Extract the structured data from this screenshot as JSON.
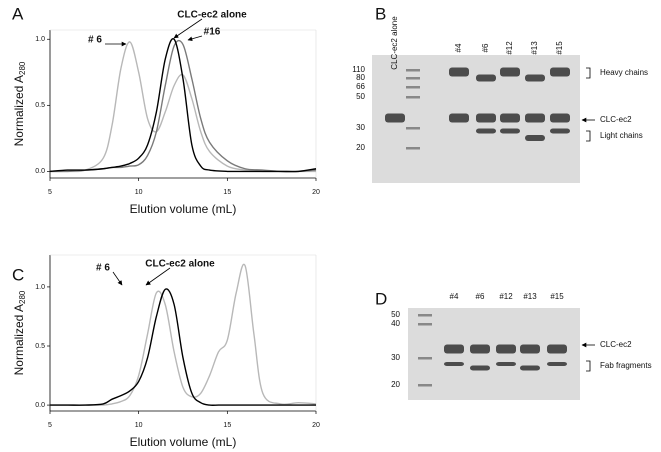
{
  "chart_data": [
    {
      "type": "line",
      "panel": "A",
      "xlabel": "Elution volume (mL)",
      "ylabel": "Normalized A",
      "ylabel_subscript": "280",
      "x": [
        5,
        6,
        7,
        8,
        8.5,
        9,
        9.5,
        10,
        10.5,
        11,
        11.5,
        12,
        12.5,
        13,
        13.5,
        14,
        15,
        16,
        17,
        18,
        19,
        20
      ],
      "xlim": [
        5,
        20
      ],
      "xticks": [
        5,
        10,
        15,
        20
      ],
      "ylim": [
        -0.05,
        1.07
      ],
      "yticks": [
        {
          "value": 0,
          "label": "0.0"
        },
        0.5,
        {
          "value": 1,
          "label": "1.0"
        }
      ],
      "series": [
        {
          "name": "# 6",
          "color": "#b8b8b8",
          "values": [
            0,
            0,
            0.01,
            0.1,
            0.35,
            0.78,
            0.98,
            0.75,
            0.4,
            0.3,
            0.45,
            0.65,
            0.73,
            0.55,
            0.3,
            0.15,
            0.04,
            0.01,
            0,
            0,
            0,
            0
          ]
        },
        {
          "name": "#16",
          "color": "#7a7a7a",
          "values": [
            0,
            0,
            0.01,
            0.02,
            0.03,
            0.03,
            0.04,
            0.05,
            0.12,
            0.3,
            0.65,
            0.95,
            0.96,
            0.7,
            0.4,
            0.22,
            0.08,
            0.02,
            0.01,
            0,
            0,
            0.01
          ]
        },
        {
          "name": "CLC-ec2 alone",
          "color": "#000000",
          "values": [
            0,
            0.01,
            0.01,
            0.02,
            0.03,
            0.04,
            0.06,
            0.1,
            0.2,
            0.45,
            0.85,
            1.0,
            0.7,
            0.2,
            0.04,
            0.01,
            0,
            0,
            0,
            0,
            0,
            0.02
          ]
        }
      ]
    },
    {
      "type": "line",
      "panel": "C",
      "xlabel": "Elution volume (mL)",
      "ylabel": "Normalized A",
      "ylabel_subscript": "280",
      "x": [
        5,
        6,
        7,
        8,
        8.5,
        9,
        9.5,
        10,
        10.5,
        11,
        11.5,
        12,
        12.5,
        13,
        13.5,
        14,
        14.5,
        15,
        15.5,
        16,
        16.5,
        17,
        18,
        19,
        20
      ],
      "xlim": [
        5,
        20
      ],
      "xticks": [
        5,
        10,
        15,
        20
      ],
      "ylim": [
        -0.05,
        1.27
      ],
      "yticks": [
        {
          "value": 0,
          "label": "0.0"
        },
        0.5,
        {
          "value": 1,
          "label": "1.0"
        }
      ],
      "series": [
        {
          "name": "# 6",
          "color": "#b8b8b8",
          "values": [
            0,
            0,
            0,
            0,
            0.01,
            0.03,
            0.08,
            0.25,
            0.6,
            0.95,
            0.85,
            0.45,
            0.15,
            0.07,
            0.1,
            0.25,
            0.45,
            0.55,
            0.95,
            1.18,
            0.6,
            0.1,
            0.01,
            0.02,
            0.01
          ]
        },
        {
          "name": "CLC-ec2 alone",
          "color": "#000000",
          "values": [
            0,
            0,
            0,
            0.01,
            0.05,
            0.08,
            0.12,
            0.2,
            0.4,
            0.75,
            0.98,
            0.85,
            0.4,
            0.1,
            0.02,
            0,
            0,
            0,
            0,
            0,
            0,
            0,
            0,
            0,
            0
          ]
        }
      ]
    }
  ],
  "gels": [
    {
      "panel": "B",
      "lanes": [
        "CLC-ec2 alone",
        "#4",
        "#6",
        "#12",
        "#13",
        "#15"
      ],
      "markers": [
        110,
        80,
        66,
        50,
        30,
        20
      ],
      "labels": [
        "Heavy chains",
        "CLC-ec2",
        "Light chains"
      ]
    },
    {
      "panel": "D",
      "lanes": [
        "#4",
        "#6",
        "#12",
        "#13",
        "#15"
      ],
      "markers": [
        50,
        40,
        30,
        20
      ],
      "labels": [
        "CLC-ec2",
        "Fab fragments"
      ]
    }
  ]
}
